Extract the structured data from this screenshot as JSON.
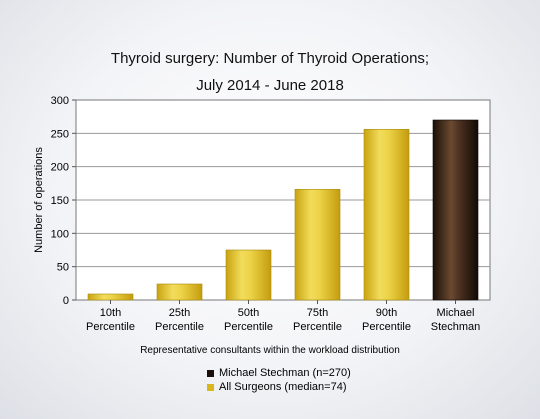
{
  "chart_data": {
    "type": "bar",
    "title_lines": [
      "Thyroid surgery: Number of Thyroid Operations;",
      "July 2014 - June 2018"
    ],
    "xlabel": "Representative consultants within the workload distribution",
    "ylabel": "Number of operations",
    "ylim": [
      0,
      300
    ],
    "yticks": [
      0,
      50,
      100,
      150,
      200,
      250,
      300
    ],
    "categories": [
      [
        "10th",
        "Percentile"
      ],
      [
        "25th",
        "Percentile"
      ],
      [
        "50th",
        "Percentile"
      ],
      [
        "75th",
        "Percentile"
      ],
      [
        "90th",
        "Percentile"
      ],
      [
        "Michael",
        "Stechman"
      ]
    ],
    "values": [
      9,
      24,
      75,
      166,
      256,
      270
    ],
    "bar_series": [
      "all",
      "all",
      "all",
      "all",
      "all",
      "surgeon"
    ],
    "grid": true,
    "legend_position": "bottom",
    "legend": [
      {
        "key": "surgeon",
        "label": "Michael Stechman (n=270)",
        "color": "#1a0f08"
      },
      {
        "key": "all",
        "label": "All Surgeons (median=74)",
        "color": "#d9b61c"
      }
    ]
  }
}
